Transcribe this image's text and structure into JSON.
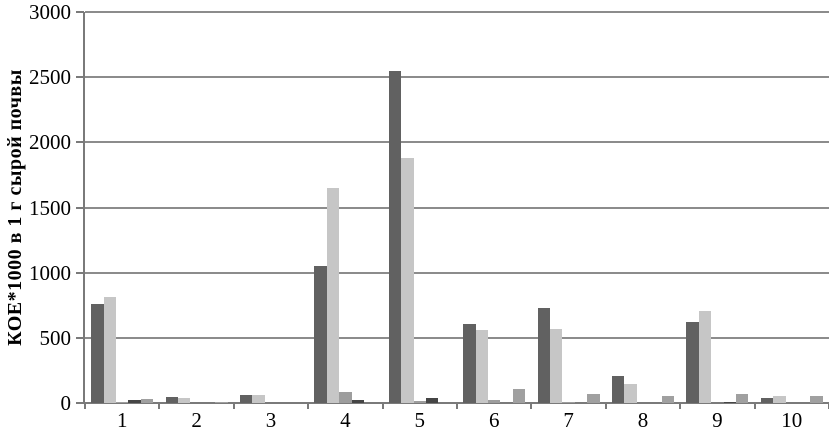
{
  "figure": {
    "background": "#ffffff",
    "axis_color": "#7a7a7a",
    "gridline_color": "#8c8c8c",
    "text_color": "#000000"
  },
  "chart_data": {
    "type": "bar",
    "title": "",
    "subtitle": "",
    "xlabel": "",
    "ylabel": "КОЕ*1000 в 1 г сырой почвы",
    "ylim": [
      0,
      3000
    ],
    "ytick_interval": 500,
    "yticks": [
      0,
      500,
      1000,
      1500,
      2000,
      2500,
      3000
    ],
    "grid": "horizontal-only",
    "legend_position": "none",
    "categories": [
      "1",
      "2",
      "3",
      "4",
      "5",
      "6",
      "7",
      "8",
      "9",
      "10"
    ],
    "series": [
      {
        "name": "series-1-dark-gray",
        "color": "#616161",
        "values": [
          760,
          45,
          65,
          1050,
          2550,
          610,
          730,
          205,
          620,
          40
        ]
      },
      {
        "name": "series-2-light-gray",
        "color": "#c6c6c6",
        "values": [
          810,
          40,
          60,
          1650,
          1880,
          560,
          565,
          145,
          705,
          50
        ]
      },
      {
        "name": "series-3-medium-gray",
        "color": "#9d9d9d",
        "values": [
          10,
          0,
          0,
          85,
          15,
          20,
          10,
          0,
          0,
          0
        ]
      },
      {
        "name": "series-4-darkest-gray",
        "color": "#454545",
        "values": [
          20,
          0,
          0,
          20,
          35,
          0,
          0,
          0,
          10,
          0
        ]
      },
      {
        "name": "series-5-gray",
        "color": "#a0a0a0",
        "values": [
          30,
          10,
          0,
          0,
          0,
          105,
          70,
          55,
          70,
          50
        ]
      }
    ]
  }
}
